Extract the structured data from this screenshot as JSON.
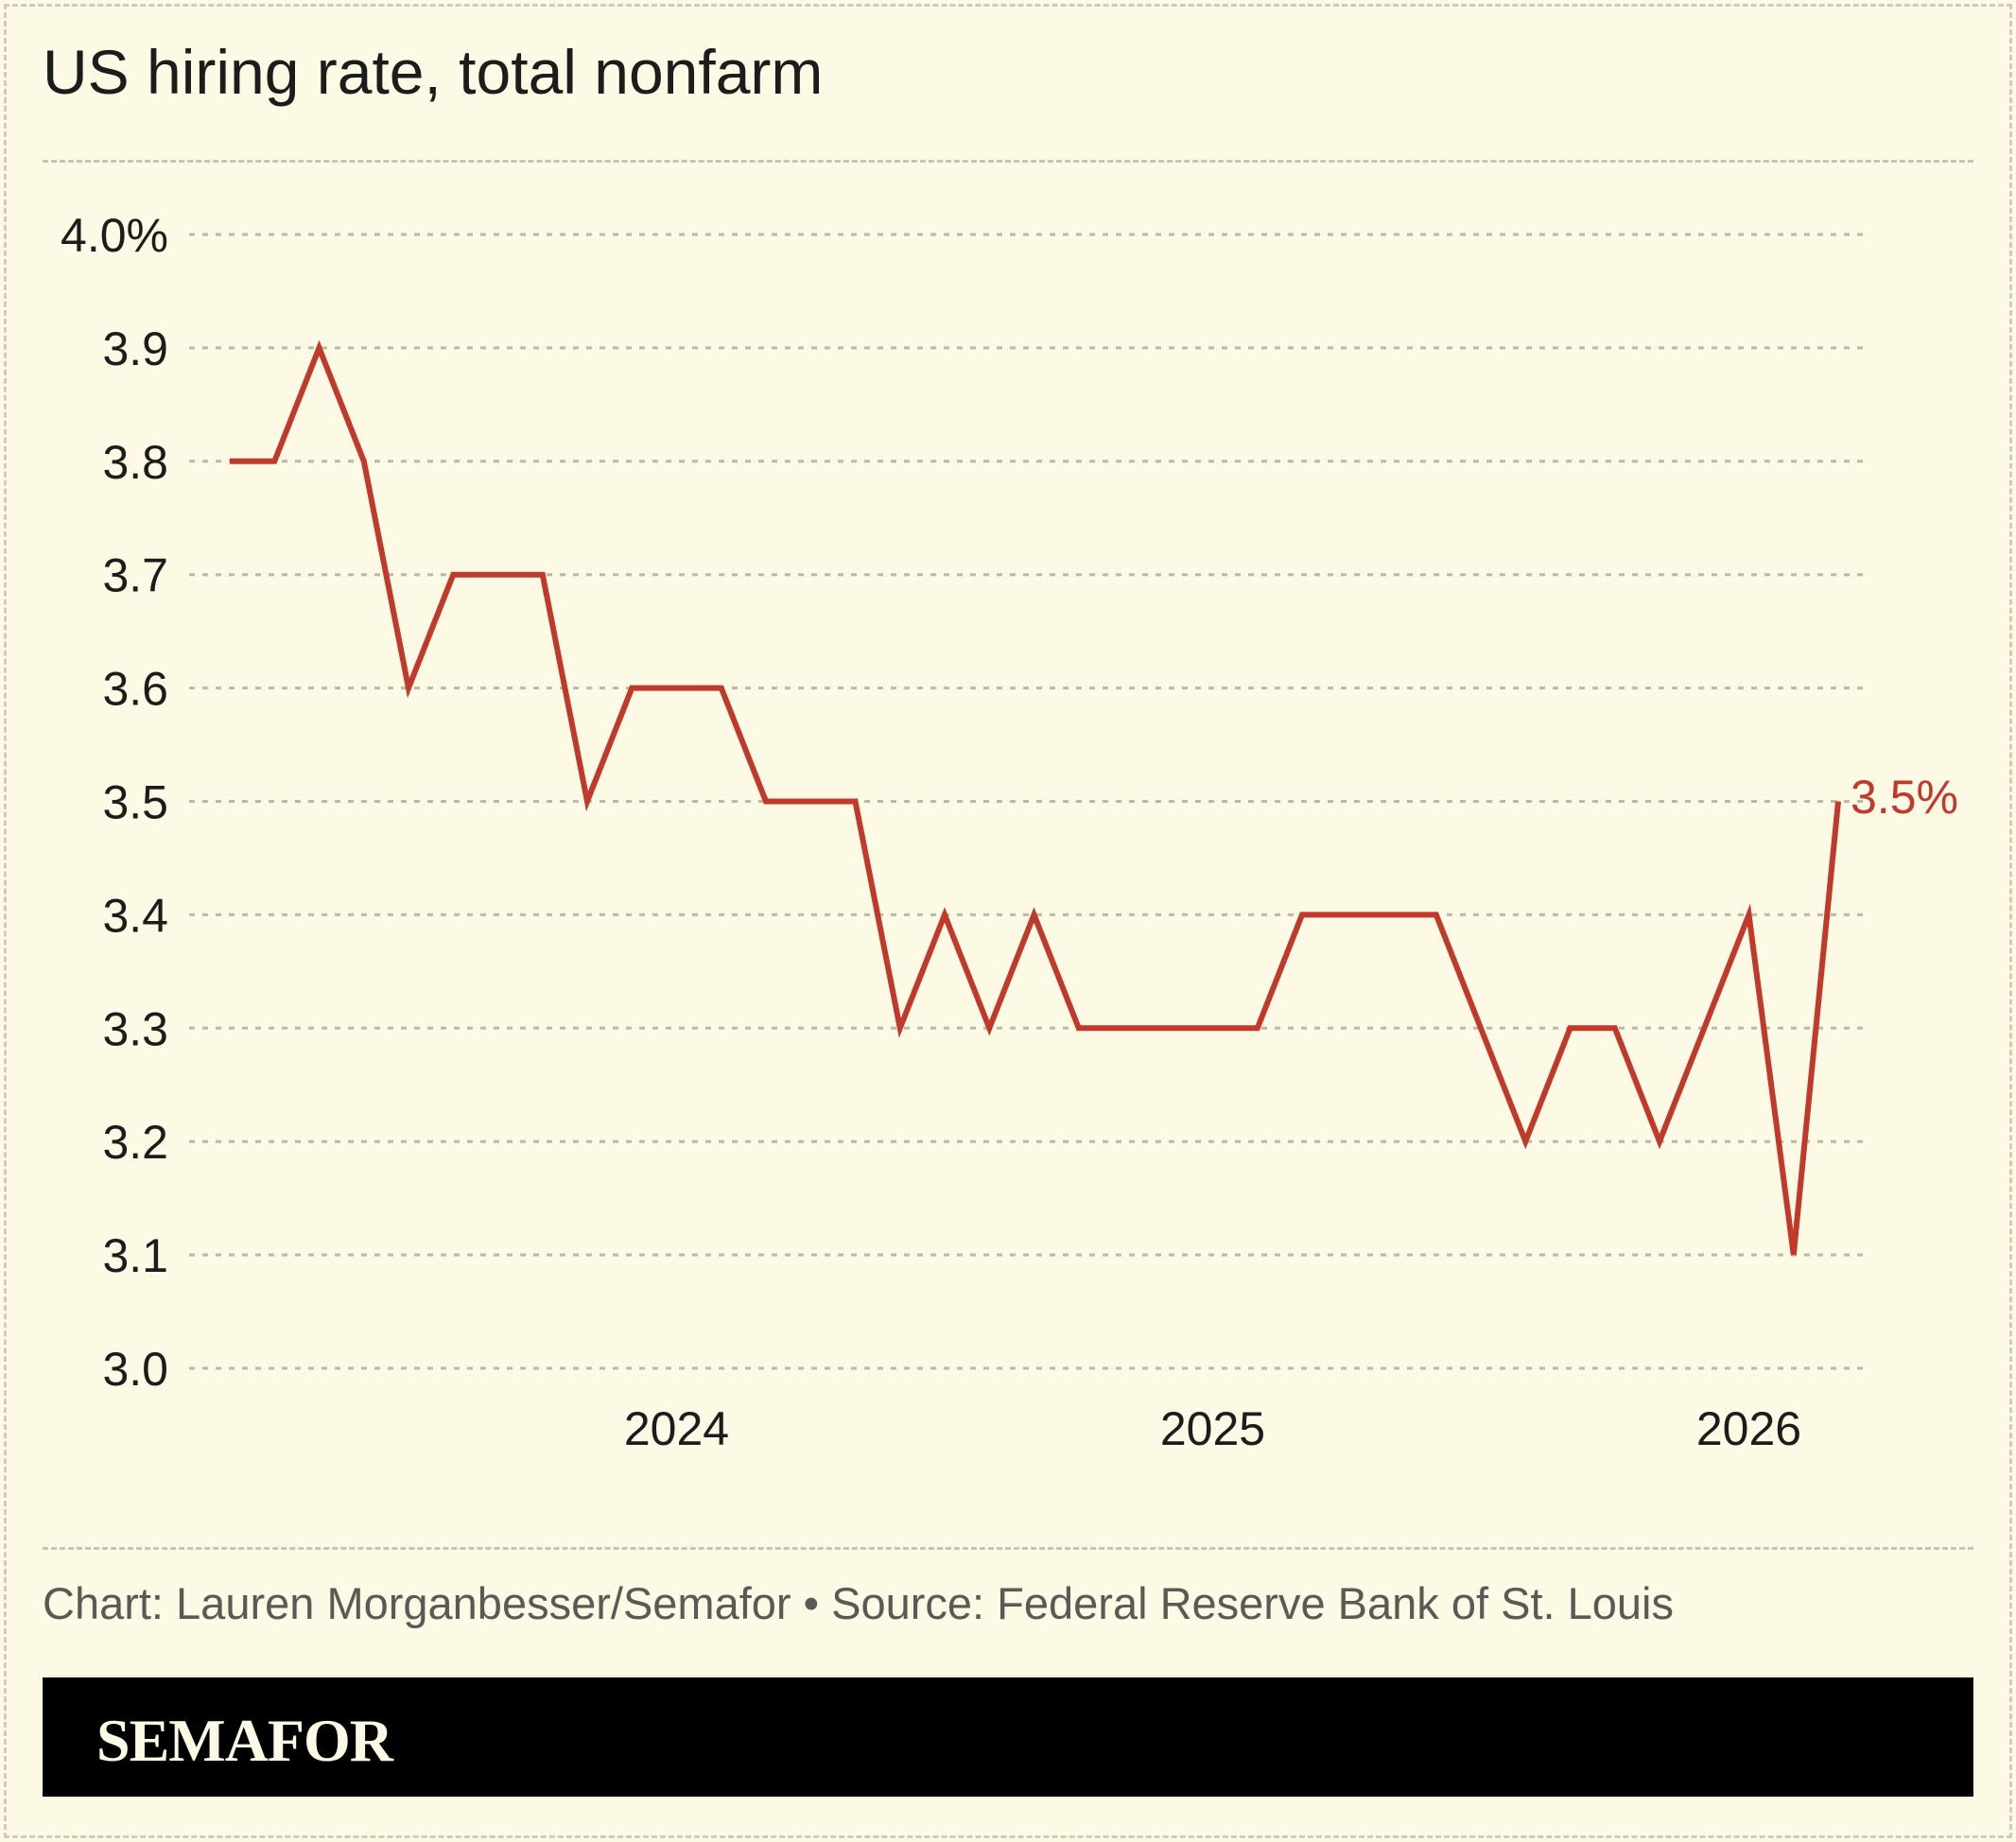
{
  "title": "US hiring rate, total nonfarm",
  "credit": "Chart: Lauren Morganbesser/Semafor • Source: Federal Reserve Bank of St. Louis",
  "brand": "SEMAFOR",
  "colors": {
    "background": "#fcf9e5",
    "line": "#c0392b",
    "grid": "#bcb8a8",
    "text": "#1c1c1c",
    "credit": "#5a5a55"
  },
  "chart_data": {
    "type": "line",
    "title": "US hiring rate, total nonfarm",
    "xlabel": "",
    "ylabel": "",
    "ylim": [
      3.0,
      4.0
    ],
    "yticks": [
      {
        "value": 4.0,
        "label": "4.0%"
      },
      {
        "value": 3.9,
        "label": "3.9"
      },
      {
        "value": 3.8,
        "label": "3.8"
      },
      {
        "value": 3.7,
        "label": "3.7"
      },
      {
        "value": 3.6,
        "label": "3.6"
      },
      {
        "value": 3.5,
        "label": "3.5"
      },
      {
        "value": 3.4,
        "label": "3.4"
      },
      {
        "value": 3.3,
        "label": "3.3"
      },
      {
        "value": 3.2,
        "label": "3.2"
      },
      {
        "value": 3.1,
        "label": "3.1"
      },
      {
        "value": 3.0,
        "label": "3.0"
      }
    ],
    "xlim": [
      "2023-03",
      "2026-03"
    ],
    "xticks": [
      {
        "value": "2024-01",
        "label": "2024"
      },
      {
        "value": "2025-01",
        "label": "2025"
      },
      {
        "value": "2026-01",
        "label": "2026"
      }
    ],
    "grid": true,
    "series": [
      {
        "x": [
          "2023-03",
          "2023-04",
          "2023-05",
          "2023-06",
          "2023-07",
          "2023-08",
          "2023-09",
          "2023-10",
          "2023-11",
          "2023-12",
          "2024-01",
          "2024-02",
          "2024-03",
          "2024-04",
          "2024-05",
          "2024-06",
          "2024-07",
          "2024-08",
          "2024-09",
          "2024-10",
          "2024-11",
          "2024-12",
          "2025-01",
          "2025-02",
          "2025-03",
          "2025-04",
          "2025-05",
          "2025-06",
          "2025-07",
          "2025-08",
          "2025-09",
          "2025-10",
          "2025-11",
          "2025-12",
          "2026-01",
          "2026-02"
        ],
        "values": [
          3.8,
          3.8,
          3.9,
          3.8,
          3.6,
          3.7,
          3.7,
          3.7,
          3.5,
          3.6,
          3.6,
          3.6,
          3.5,
          3.5,
          3.5,
          3.3,
          3.4,
          3.3,
          3.4,
          3.3,
          3.3,
          3.3,
          3.3,
          3.3,
          3.4,
          3.4,
          3.4,
          3.4,
          3.3,
          3.2,
          3.3,
          3.3,
          3.2,
          3.3,
          3.4,
          3.1
        ]
      },
      {
        "x": [
          "2026-02",
          "2026-03"
        ],
        "values": [
          3.1,
          3.5
        ]
      }
    ],
    "end_label": "3.5%"
  }
}
